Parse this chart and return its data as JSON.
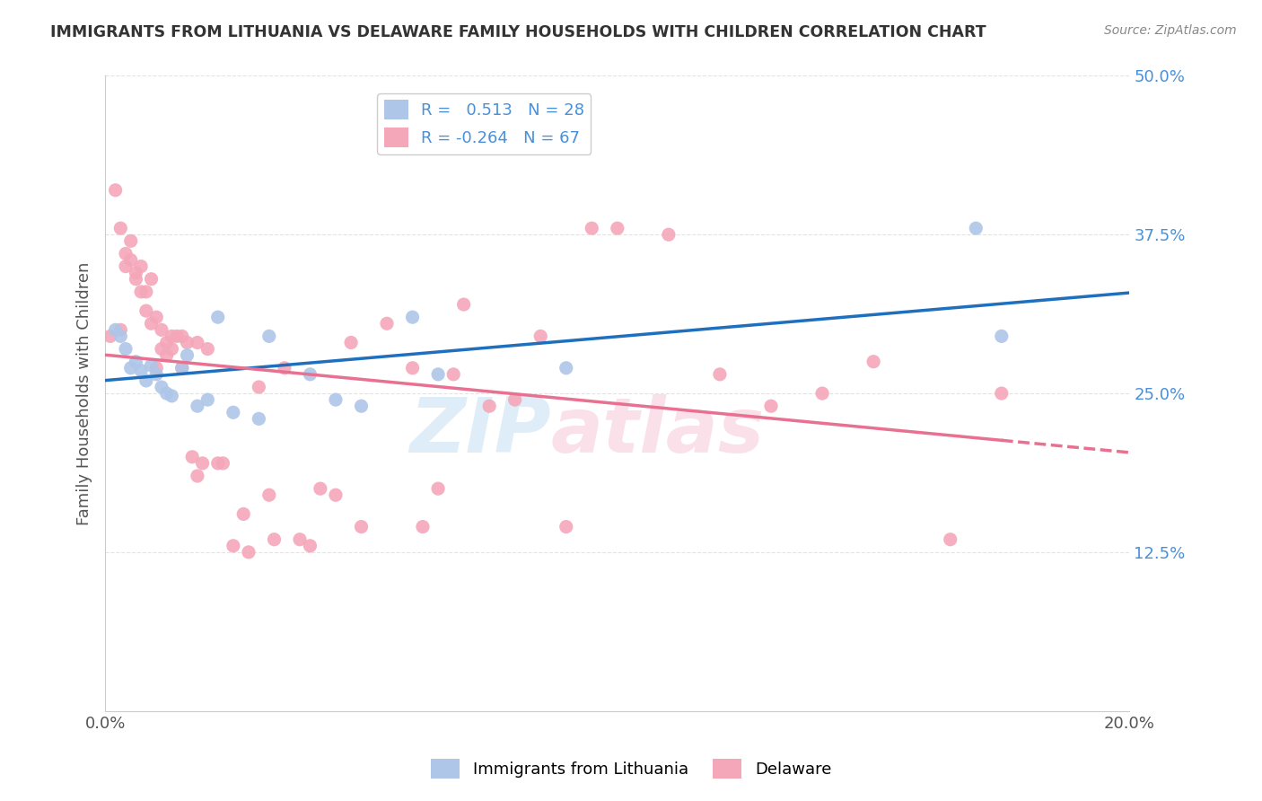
{
  "title": "IMMIGRANTS FROM LITHUANIA VS DELAWARE FAMILY HOUSEHOLDS WITH CHILDREN CORRELATION CHART",
  "source": "Source: ZipAtlas.com",
  "ylabel_label": "Family Households with Children",
  "legend_labels": [
    "Immigrants from Lithuania",
    "Delaware"
  ],
  "blue_R": 0.513,
  "blue_N": 28,
  "pink_R": -0.264,
  "pink_N": 67,
  "blue_color": "#aec6e8",
  "pink_color": "#f4a7b9",
  "blue_line_color": "#1f6fbf",
  "pink_line_color": "#e87090",
  "background_color": "#ffffff",
  "grid_color": "#dddddd",
  "x_min": 0.0,
  "x_max": 0.2,
  "y_min": 0.0,
  "y_max": 0.5,
  "blue_scatter_x": [
    0.002,
    0.003,
    0.004,
    0.005,
    0.006,
    0.007,
    0.008,
    0.009,
    0.01,
    0.011,
    0.012,
    0.013,
    0.015,
    0.016,
    0.018,
    0.02,
    0.022,
    0.025,
    0.03,
    0.032,
    0.04,
    0.045,
    0.05,
    0.06,
    0.065,
    0.09,
    0.17,
    0.175
  ],
  "blue_scatter_y": [
    0.3,
    0.295,
    0.285,
    0.27,
    0.275,
    0.268,
    0.26,
    0.272,
    0.265,
    0.255,
    0.25,
    0.248,
    0.27,
    0.28,
    0.24,
    0.245,
    0.31,
    0.235,
    0.23,
    0.295,
    0.265,
    0.245,
    0.24,
    0.31,
    0.265,
    0.27,
    0.38,
    0.295
  ],
  "pink_scatter_x": [
    0.001,
    0.002,
    0.003,
    0.003,
    0.004,
    0.004,
    0.005,
    0.005,
    0.006,
    0.006,
    0.007,
    0.007,
    0.008,
    0.008,
    0.009,
    0.009,
    0.01,
    0.01,
    0.011,
    0.011,
    0.012,
    0.012,
    0.013,
    0.013,
    0.014,
    0.015,
    0.015,
    0.016,
    0.017,
    0.018,
    0.018,
    0.019,
    0.02,
    0.022,
    0.023,
    0.025,
    0.027,
    0.028,
    0.03,
    0.032,
    0.033,
    0.035,
    0.038,
    0.04,
    0.042,
    0.045,
    0.048,
    0.05,
    0.055,
    0.06,
    0.062,
    0.065,
    0.068,
    0.07,
    0.075,
    0.08,
    0.085,
    0.09,
    0.095,
    0.1,
    0.11,
    0.12,
    0.13,
    0.14,
    0.15,
    0.165,
    0.175
  ],
  "pink_scatter_y": [
    0.295,
    0.41,
    0.38,
    0.3,
    0.35,
    0.36,
    0.37,
    0.355,
    0.34,
    0.345,
    0.35,
    0.33,
    0.315,
    0.33,
    0.34,
    0.305,
    0.31,
    0.27,
    0.285,
    0.3,
    0.29,
    0.28,
    0.295,
    0.285,
    0.295,
    0.295,
    0.27,
    0.29,
    0.2,
    0.29,
    0.185,
    0.195,
    0.285,
    0.195,
    0.195,
    0.13,
    0.155,
    0.125,
    0.255,
    0.17,
    0.135,
    0.27,
    0.135,
    0.13,
    0.175,
    0.17,
    0.29,
    0.145,
    0.305,
    0.27,
    0.145,
    0.175,
    0.265,
    0.32,
    0.24,
    0.245,
    0.295,
    0.145,
    0.38,
    0.38,
    0.375,
    0.265,
    0.24,
    0.25,
    0.275,
    0.135,
    0.25
  ]
}
